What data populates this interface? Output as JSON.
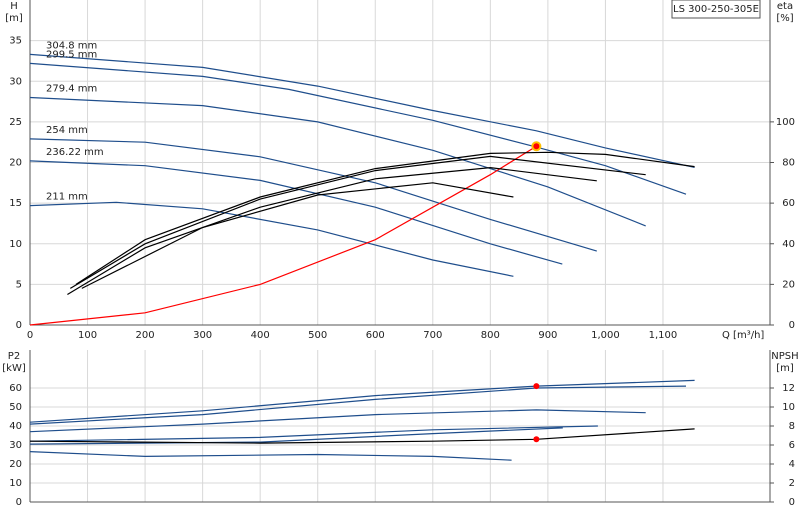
{
  "chart_data": [
    {
      "type": "line",
      "title": "LS 300-250-305E",
      "y_label": "H",
      "y_unit": "[m]",
      "y2_label": "eta",
      "y2_unit": "[%]",
      "x_label": "Q [m³/h]",
      "xlim": [
        0,
        1286
      ],
      "xticks": [
        0,
        100,
        200,
        300,
        400,
        500,
        600,
        700,
        800,
        900,
        {
          "value": 1000,
          "label": "1,000"
        },
        {
          "value": 1100,
          "label": "1,100"
        }
      ],
      "ylim": [
        0,
        40
      ],
      "yticks": [
        0,
        5,
        10,
        15,
        20,
        25,
        30,
        35
      ],
      "y2lim": [
        0,
        160
      ],
      "y2ticks": [
        0,
        20,
        40,
        60,
        80,
        100
      ],
      "grid": true,
      "series": [
        {
          "name": "304.8 mm",
          "color": "#1f4e8c",
          "x": [
            0,
            300,
            500,
            700,
            880,
            1000,
            1155
          ],
          "values": [
            33.3,
            31.7,
            29.4,
            26.4,
            23.9,
            21.8,
            19.4
          ]
        },
        {
          "name": "299.5 mm",
          "color": "#1f4e8c",
          "x": [
            0,
            300,
            450,
            700,
            880,
            1000,
            1140
          ],
          "values": [
            32.2,
            30.6,
            29,
            25.2,
            21.9,
            19.6,
            16.1
          ]
        },
        {
          "name": "279.4 mm",
          "color": "#1f4e8c",
          "x": [
            0,
            300,
            500,
            700,
            900,
            1070
          ],
          "values": [
            28,
            27,
            25,
            21.5,
            17,
            12.2
          ]
        },
        {
          "name": "254 mm",
          "color": "#1f4e8c",
          "x": [
            0,
            200,
            400,
            600,
            800,
            985
          ],
          "values": [
            22.9,
            22.5,
            20.7,
            17.5,
            13,
            9.1
          ]
        },
        {
          "name": "236.22 mm",
          "color": "#1f4e8c",
          "x": [
            0,
            200,
            400,
            600,
            800,
            925
          ],
          "values": [
            20.2,
            19.6,
            17.8,
            14.5,
            10,
            7.5
          ]
        },
        {
          "name": "211 mm",
          "color": "#1f4e8c",
          "x": [
            0,
            150,
            300,
            500,
            700,
            840
          ],
          "values": [
            14.7,
            15.1,
            14.3,
            11.7,
            8,
            6
          ]
        },
        {
          "color": "#ff0000",
          "x": [
            0,
            200,
            400,
            600,
            800,
            880
          ],
          "values": [
            0,
            1.5,
            5,
            10.5,
            18.5,
            22
          ]
        },
        {
          "color": "#000000",
          "axis": "y2",
          "x": [
            80,
            200,
            400,
            600,
            800,
            900,
            1000,
            1155
          ],
          "values": [
            20,
            42,
            63,
            77,
            84.5,
            85,
            84,
            78
          ]
        },
        {
          "color": "#000000",
          "axis": "y2",
          "x": [
            70,
            200,
            400,
            600,
            800,
            1070
          ],
          "values": [
            18,
            40,
            62,
            76,
            83,
            74
          ]
        },
        {
          "color": "#000000",
          "axis": "y2",
          "x": [
            65,
            200,
            400,
            600,
            800,
            985
          ],
          "values": [
            15,
            38,
            58,
            72,
            77.5,
            71
          ]
        },
        {
          "color": "#000000",
          "axis": "y2",
          "x": [
            90,
            300,
            500,
            700,
            840
          ],
          "values": [
            18,
            48,
            64,
            70,
            63
          ]
        }
      ],
      "duty_point": {
        "x": 880,
        "y": 22,
        "color": "#ff0000"
      }
    },
    {
      "type": "line",
      "y_label": "P2",
      "y_unit": "[kW]",
      "y2_label": "NPSH",
      "y2_unit": "[m]",
      "xlim": [
        0,
        1286
      ],
      "ylim": [
        0,
        80
      ],
      "yticks": [
        0,
        10,
        20,
        30,
        40,
        50,
        60
      ],
      "y2lim": [
        0,
        16
      ],
      "y2ticks": [
        0,
        2,
        4,
        6,
        8,
        10,
        12
      ],
      "grid": true,
      "series": [
        {
          "color": "#1f4e8c",
          "x": [
            0,
            300,
            600,
            880,
            1155
          ],
          "values": [
            42,
            48,
            56,
            61,
            64
          ]
        },
        {
          "color": "#1f4e8c",
          "x": [
            0,
            300,
            600,
            880,
            1140
          ],
          "values": [
            41,
            46,
            54,
            60,
            61
          ]
        },
        {
          "color": "#1f4e8c",
          "x": [
            0,
            300,
            600,
            880,
            1070
          ],
          "values": [
            37,
            41,
            46,
            48.5,
            47
          ]
        },
        {
          "color": "#1f4e8c",
          "x": [
            0,
            400,
            700,
            987
          ],
          "values": [
            32,
            34,
            38,
            40
          ]
        },
        {
          "color": "#1f4e8c",
          "x": [
            0,
            400,
            700,
            926
          ],
          "values": [
            30.5,
            31.5,
            36,
            39
          ]
        },
        {
          "color": "#1f4e8c",
          "x": [
            0,
            200,
            500,
            700,
            837
          ],
          "values": [
            26.5,
            24,
            25,
            24,
            22
          ]
        },
        {
          "color": "#000000",
          "axis": "y2",
          "x": [
            0,
            400,
            700,
            880,
            1155
          ],
          "values": [
            6.4,
            6.2,
            6.4,
            6.6,
            7.7
          ]
        }
      ],
      "duty_point": {
        "x": 880,
        "y": 61,
        "y2": 6.6,
        "color": "#ff0000"
      }
    }
  ]
}
